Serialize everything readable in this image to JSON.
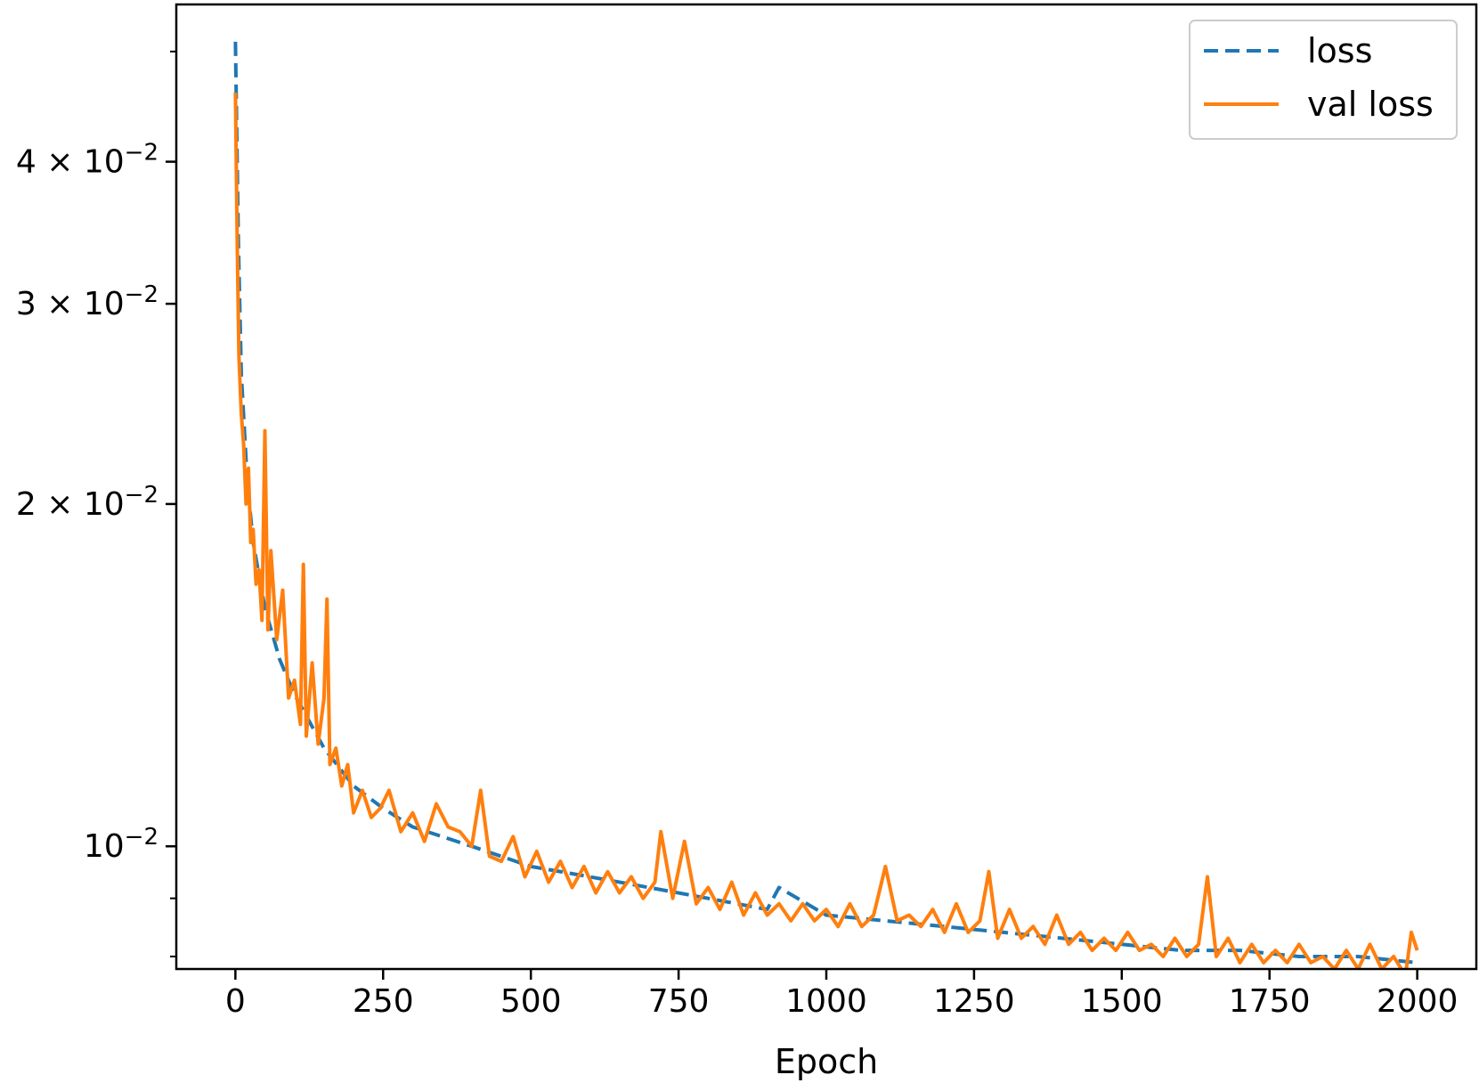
{
  "chart_data": {
    "type": "line",
    "xlabel": "Epoch",
    "ylabel": "",
    "title": "",
    "y_scale": "log",
    "xlim": [
      -100,
      2100
    ],
    "ylim": [
      0.0078,
      0.055
    ],
    "grid": false,
    "legend_position": "top-right",
    "x_ticks": [
      0,
      250,
      500,
      750,
      1000,
      1250,
      1500,
      1750,
      2000
    ],
    "x_tick_labels": [
      "0",
      "250",
      "500",
      "750",
      "1000",
      "1250",
      "1500",
      "1750",
      "2000"
    ],
    "y_major_ticks": [
      {
        "value": 0.01,
        "mantissa": "",
        "exponent": "−2",
        "base": "10"
      },
      {
        "value": 0.02,
        "mantissa": "2 × ",
        "exponent": "−2",
        "base": "10"
      },
      {
        "value": 0.03,
        "mantissa": "3 × ",
        "exponent": "−2",
        "base": "10"
      },
      {
        "value": 0.04,
        "mantissa": "4 × ",
        "exponent": "−2",
        "base": "10"
      }
    ],
    "y_minor_ticks": [
      0.008,
      0.009,
      0.05
    ],
    "colors": {
      "loss": "#1f77b4",
      "val_loss": "#ff7f0e"
    },
    "series": [
      {
        "name": "loss",
        "style": "dashed",
        "color": "#1f77b4",
        "x": [
          0,
          5,
          10,
          20,
          30,
          50,
          75,
          100,
          150,
          200,
          250,
          300,
          400,
          500,
          600,
          700,
          800,
          900,
          920,
          1000,
          1100,
          1200,
          1300,
          1400,
          1500,
          1600,
          1700,
          1800,
          1900,
          2000
        ],
        "y": [
          0.051,
          0.034,
          0.026,
          0.021,
          0.0185,
          0.0162,
          0.0146,
          0.0136,
          0.0122,
          0.0113,
          0.0108,
          0.0104,
          0.01,
          0.0096,
          0.0094,
          0.0092,
          0.009,
          0.0088,
          0.0092,
          0.0087,
          0.0086,
          0.0085,
          0.0084,
          0.0083,
          0.0082,
          0.0081,
          0.0081,
          0.008,
          0.008,
          0.0079
        ]
      },
      {
        "name": "val loss",
        "style": "solid",
        "color": "#ff7f0e",
        "x": [
          0,
          3,
          6,
          10,
          14,
          18,
          22,
          26,
          30,
          35,
          40,
          45,
          50,
          55,
          60,
          70,
          80,
          90,
          100,
          110,
          115,
          120,
          130,
          140,
          150,
          155,
          160,
          170,
          180,
          190,
          200,
          215,
          230,
          245,
          260,
          280,
          300,
          320,
          340,
          360,
          380,
          400,
          415,
          430,
          450,
          470,
          490,
          510,
          530,
          550,
          570,
          590,
          610,
          630,
          650,
          670,
          690,
          710,
          720,
          740,
          760,
          780,
          800,
          820,
          840,
          860,
          880,
          900,
          920,
          940,
          960,
          980,
          1000,
          1020,
          1040,
          1060,
          1080,
          1100,
          1120,
          1140,
          1160,
          1180,
          1200,
          1220,
          1240,
          1260,
          1275,
          1290,
          1310,
          1330,
          1350,
          1370,
          1390,
          1410,
          1430,
          1450,
          1470,
          1490,
          1510,
          1530,
          1550,
          1570,
          1590,
          1610,
          1630,
          1645,
          1660,
          1680,
          1700,
          1720,
          1740,
          1760,
          1780,
          1800,
          1820,
          1840,
          1860,
          1880,
          1900,
          1920,
          1940,
          1960,
          1980,
          1990,
          2000
        ],
        "y": [
          0.046,
          0.034,
          0.027,
          0.024,
          0.0225,
          0.02,
          0.0215,
          0.0185,
          0.019,
          0.017,
          0.0175,
          0.0158,
          0.0232,
          0.0155,
          0.0182,
          0.0152,
          0.0168,
          0.0135,
          0.014,
          0.0128,
          0.0177,
          0.0125,
          0.0145,
          0.0123,
          0.0135,
          0.0165,
          0.0118,
          0.0122,
          0.0113,
          0.0118,
          0.0107,
          0.0112,
          0.0106,
          0.0108,
          0.0112,
          0.0103,
          0.0107,
          0.0101,
          0.0109,
          0.0104,
          0.0103,
          0.01,
          0.0112,
          0.0098,
          0.0097,
          0.0102,
          0.0094,
          0.0099,
          0.0093,
          0.0097,
          0.0092,
          0.0096,
          0.0091,
          0.0095,
          0.0091,
          0.0094,
          0.009,
          0.0093,
          0.0103,
          0.009,
          0.0101,
          0.0089,
          0.0092,
          0.0088,
          0.0093,
          0.0087,
          0.0091,
          0.0087,
          0.0089,
          0.0086,
          0.0089,
          0.0086,
          0.0088,
          0.0085,
          0.0089,
          0.0085,
          0.0087,
          0.0096,
          0.0086,
          0.0087,
          0.0085,
          0.0088,
          0.0084,
          0.0089,
          0.0084,
          0.0086,
          0.0095,
          0.0083,
          0.0088,
          0.0083,
          0.0085,
          0.0082,
          0.0087,
          0.0082,
          0.0084,
          0.0081,
          0.0083,
          0.0081,
          0.0084,
          0.0081,
          0.0082,
          0.008,
          0.0083,
          0.008,
          0.0082,
          0.0094,
          0.008,
          0.0083,
          0.0079,
          0.0082,
          0.0079,
          0.0081,
          0.0079,
          0.0082,
          0.0079,
          0.008,
          0.0078,
          0.0081,
          0.0078,
          0.0082,
          0.0078,
          0.008,
          0.0077,
          0.0084,
          0.0081
        ]
      }
    ]
  }
}
